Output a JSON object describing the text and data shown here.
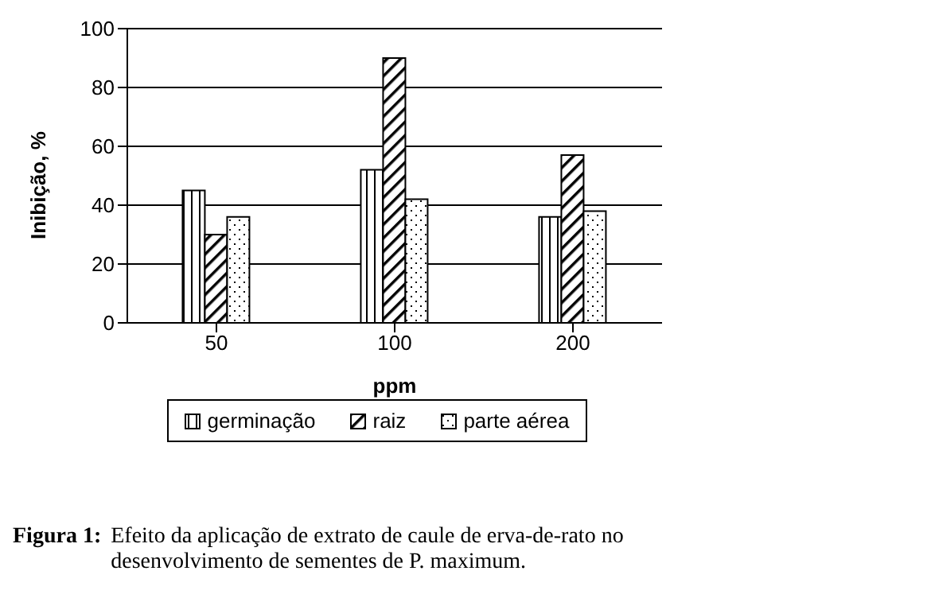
{
  "chart_data": {
    "type": "bar",
    "categories": [
      "50",
      "100",
      "200"
    ],
    "series": [
      {
        "name": "germinação",
        "color": "#000000",
        "values": [
          45,
          52,
          36
        ]
      },
      {
        "name": "raiz",
        "color": "#000000",
        "values": [
          30,
          90,
          57
        ]
      },
      {
        "name": "parte aérea",
        "color": "#000000",
        "values": [
          36,
          42,
          38
        ]
      }
    ],
    "xlabel": "ppm",
    "ylabel": "Inibição, %",
    "ylim": [
      0,
      100
    ],
    "yticks": [
      0,
      20,
      40,
      60,
      80,
      100
    ],
    "grid": "y",
    "legend": "bottom",
    "annotations": [
      "Figura 1:",
      "Efeito da aplicação de extrato de caule de erva-de-rato no desenvolvimento de sementes de P. maximum."
    ]
  }
}
